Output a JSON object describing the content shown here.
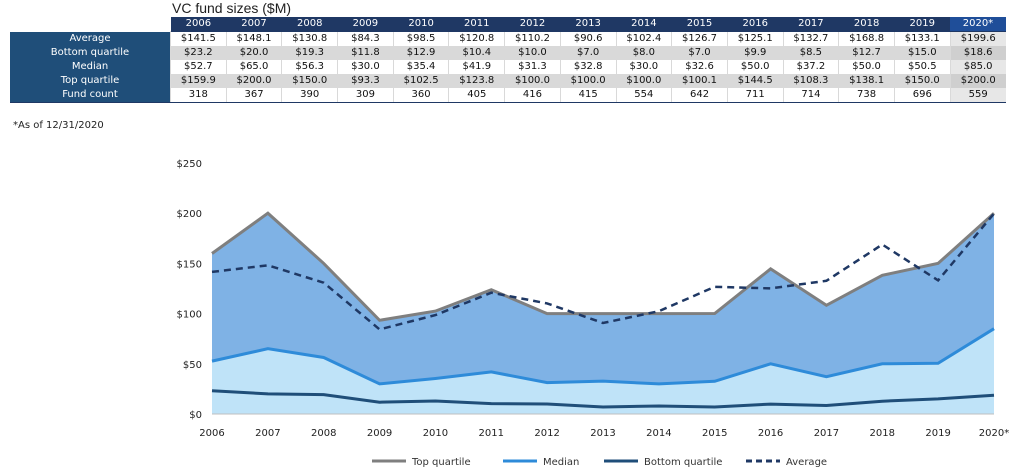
{
  "title": "VC fund sizes ($M)",
  "footnote": "*As of 12/31/2020",
  "table": {
    "years": [
      "2006",
      "2007",
      "2008",
      "2009",
      "2010",
      "2011",
      "2012",
      "2013",
      "2014",
      "2015",
      "2016",
      "2017",
      "2018",
      "2019",
      "2020*"
    ],
    "rows": [
      {
        "label": "Average",
        "cells": [
          "$141.5",
          "$148.1",
          "$130.8",
          "$84.3",
          "$98.5",
          "$120.8",
          "$110.2",
          "$90.6",
          "$102.4",
          "$126.7",
          "$125.1",
          "$132.7",
          "$168.8",
          "$133.1",
          "$199.6"
        ]
      },
      {
        "label": "Bottom quartile",
        "cells": [
          "$23.2",
          "$20.0",
          "$19.3",
          "$11.8",
          "$12.9",
          "$10.4",
          "$10.0",
          "$7.0",
          "$8.0",
          "$7.0",
          "$9.9",
          "$8.5",
          "$12.7",
          "$15.0",
          "$18.6"
        ]
      },
      {
        "label": "Median",
        "cells": [
          "$52.7",
          "$65.0",
          "$56.3",
          "$30.0",
          "$35.4",
          "$41.9",
          "$31.3",
          "$32.8",
          "$30.0",
          "$32.6",
          "$50.0",
          "$37.2",
          "$50.0",
          "$50.5",
          "$85.0"
        ]
      },
      {
        "label": "Top quartile",
        "cells": [
          "$159.9",
          "$200.0",
          "$150.0",
          "$93.3",
          "$102.5",
          "$123.8",
          "$100.0",
          "$100.0",
          "$100.0",
          "$100.1",
          "$144.5",
          "$108.3",
          "$138.1",
          "$150.0",
          "$200.0"
        ]
      },
      {
        "label": "Fund count",
        "cells": [
          "318",
          "367",
          "390",
          "309",
          "360",
          "405",
          "416",
          "415",
          "554",
          "642",
          "711",
          "714",
          "738",
          "696",
          "559"
        ]
      }
    ]
  },
  "chart_data": {
    "type": "area",
    "categories": [
      "2006",
      "2007",
      "2008",
      "2009",
      "2010",
      "2011",
      "2012",
      "2013",
      "2014",
      "2015",
      "2016",
      "2017",
      "2018",
      "2019",
      "2020*"
    ],
    "series": [
      {
        "name": "Top quartile",
        "values": [
          159.9,
          200.0,
          150.0,
          93.3,
          102.5,
          123.8,
          100.0,
          100.0,
          100.0,
          100.1,
          144.5,
          108.3,
          138.1,
          150.0,
          200.0
        ],
        "color": "#7f7f7f",
        "fill": "#7fb2e5"
      },
      {
        "name": "Median",
        "values": [
          52.7,
          65.0,
          56.3,
          30.0,
          35.4,
          41.9,
          31.3,
          32.8,
          30.0,
          32.6,
          50.0,
          37.2,
          50.0,
          50.5,
          85.0
        ],
        "color": "#2e8bd9",
        "fill": "#bfe3f8"
      },
      {
        "name": "Bottom quartile",
        "values": [
          23.2,
          20.0,
          19.3,
          11.8,
          12.9,
          10.4,
          10.0,
          7.0,
          8.0,
          7.0,
          9.9,
          8.5,
          12.7,
          15.0,
          18.6
        ],
        "color": "#1f4e79"
      },
      {
        "name": "Average",
        "values": [
          141.5,
          148.1,
          130.8,
          84.3,
          98.5,
          120.8,
          110.2,
          90.6,
          102.4,
          126.7,
          125.1,
          132.7,
          168.8,
          133.1,
          199.6
        ],
        "color": "#1f3864",
        "dashed": true
      }
    ],
    "yticks": [
      0,
      50,
      100,
      150,
      200,
      250
    ],
    "ytick_labels": [
      "$0",
      "$50",
      "$100",
      "$150",
      "$200",
      "$250"
    ],
    "ylim": [
      0,
      250
    ],
    "grid": false,
    "legend": "bottom"
  }
}
